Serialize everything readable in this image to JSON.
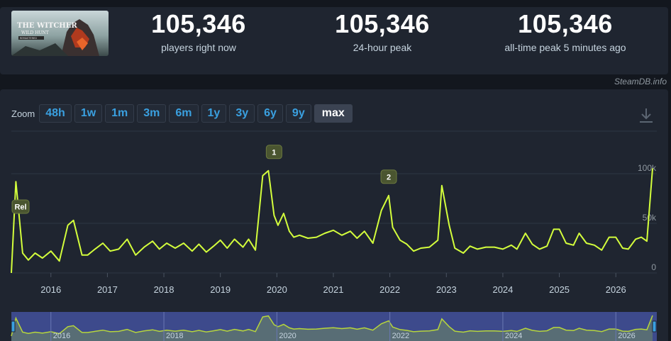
{
  "stats": [
    {
      "value": "105,346",
      "label": "players right now"
    },
    {
      "value": "105,346",
      "label": "24-hour peak"
    },
    {
      "value": "105,346",
      "label": "all-time peak 5 minutes ago"
    }
  ],
  "game_thumb": {
    "logo_text_1": "THE WITCHER",
    "logo_text_2": "WILD HUNT",
    "logo_text_3": "REMASTERED"
  },
  "credit": "SteamDB.info",
  "zoom": {
    "label": "Zoom",
    "options": [
      "48h",
      "1w",
      "1m",
      "3m",
      "6m",
      "1y",
      "3y",
      "6y",
      "9y",
      "max"
    ],
    "active": "max"
  },
  "icons": {
    "download": "download-icon"
  },
  "colors": {
    "line": "#d4ff3c",
    "navigator_fill": "#3d4a8c",
    "panel": "#1f2530",
    "accent": "#3aa0e0"
  },
  "chart_data": {
    "type": "line",
    "series": [
      {
        "x": [
          2015.3,
          2015.38,
          2015.5,
          2015.6,
          2015.72,
          2015.85,
          2016.0,
          2016.15,
          2016.3,
          2016.4,
          2016.55,
          2016.65,
          2016.78,
          2016.92,
          2017.05,
          2017.2,
          2017.35,
          2017.5,
          2017.65,
          2017.8,
          2017.92,
          2018.05,
          2018.2,
          2018.35,
          2018.5,
          2018.62,
          2018.75,
          2018.88,
          2019.0,
          2019.12,
          2019.25,
          2019.4,
          2019.5,
          2019.62,
          2019.75,
          2019.85,
          2019.95,
          2020.02,
          2020.12,
          2020.22,
          2020.3,
          2020.4,
          2020.55,
          2020.7,
          2020.85,
          2021.0,
          2021.15,
          2021.3,
          2021.42,
          2021.55,
          2021.7,
          2021.85,
          2021.98,
          2022.05,
          2022.18,
          2022.3,
          2022.42,
          2022.55,
          2022.7,
          2022.85,
          2022.92,
          2023.05,
          2023.15,
          2023.3,
          2023.42,
          2023.55,
          2023.7,
          2023.85,
          2024.0,
          2024.15,
          2024.25,
          2024.4,
          2024.52,
          2024.65,
          2024.78,
          2024.9,
          2025.0,
          2025.12,
          2025.25,
          2025.35,
          2025.48,
          2025.62,
          2025.75,
          2025.88,
          2026.0,
          2026.12,
          2026.22,
          2026.35,
          2026.45,
          2026.55,
          2026.65
        ],
        "y": [
          0,
          92000,
          20000,
          13000,
          20000,
          15000,
          22000,
          12000,
          48000,
          53000,
          18000,
          18000,
          24000,
          30000,
          22000,
          24000,
          34000,
          18000,
          26000,
          32000,
          24000,
          30000,
          25000,
          30000,
          22000,
          29000,
          21000,
          27000,
          33000,
          25000,
          34000,
          26000,
          34000,
          23000,
          98000,
          103000,
          58000,
          48000,
          60000,
          42000,
          36000,
          38000,
          35000,
          36000,
          40000,
          43000,
          38000,
          42000,
          35000,
          42000,
          30000,
          63000,
          78000,
          46000,
          33000,
          29000,
          22000,
          25000,
          26000,
          33000,
          88000,
          48000,
          25000,
          20000,
          27000,
          24000,
          26000,
          26000,
          24000,
          28000,
          24000,
          40000,
          29000,
          24000,
          27000,
          44000,
          44000,
          30000,
          28000,
          40000,
          30000,
          28000,
          23000,
          36000,
          36000,
          25000,
          24000,
          34000,
          36000,
          32000,
          105346
        ]
      }
    ],
    "x_ticks": [
      "2016",
      "2017",
      "2018",
      "2019",
      "2020",
      "2021",
      "2022",
      "2023",
      "2024",
      "2025",
      "2026"
    ],
    "y_ticks": [
      "0",
      "50k",
      "100k"
    ],
    "ylim": [
      0,
      130000
    ],
    "annotations": [
      {
        "label": "Rel",
        "x": 2015.3,
        "y": 70000
      },
      {
        "label": "1",
        "x": 2019.95,
        "y": 103000
      },
      {
        "label": "2",
        "x": 2021.98,
        "y": 78000
      }
    ],
    "navigator_ticks": [
      "2016",
      "2018",
      "2020",
      "2022",
      "2024",
      "2026"
    ],
    "grid": "horizontal",
    "legend": "none"
  }
}
